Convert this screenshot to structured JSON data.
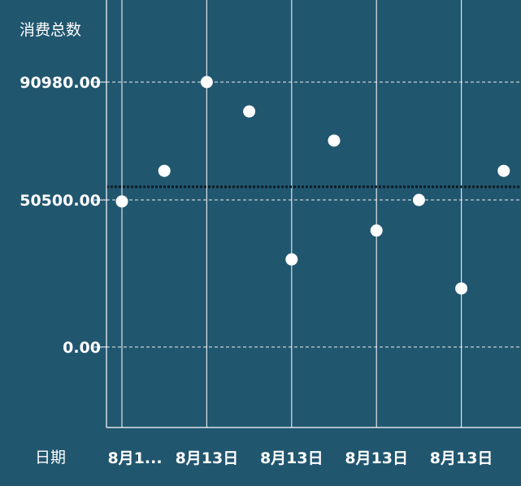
{
  "chart_data": {
    "type": "scatter",
    "ylabel": "消费总数",
    "xlabel": "日期",
    "y_ticks": [
      {
        "value": 90980,
        "label": "90980.00"
      },
      {
        "value": 50500,
        "label": "50500.00"
      },
      {
        "value": 0,
        "label": "0.00"
      }
    ],
    "x_tick_labels": [
      "8月1...",
      "8月13日",
      "8月13日",
      "8月13日",
      "8月13日"
    ],
    "reference_line": 55000,
    "points": [
      {
        "x": 0,
        "y": 50000
      },
      {
        "x": 1,
        "y": 60500
      },
      {
        "x": 2,
        "y": 90980
      },
      {
        "x": 3,
        "y": 80900
      },
      {
        "x": 4,
        "y": 30100
      },
      {
        "x": 5,
        "y": 70900
      },
      {
        "x": 6,
        "y": 40000
      },
      {
        "x": 7,
        "y": 50500
      },
      {
        "x": 8,
        "y": 20100
      },
      {
        "x": 9,
        "y": 60500
      }
    ],
    "ylim": [
      -27000,
      118000
    ],
    "grid": true,
    "colors": {
      "background": "#21566f",
      "point": "#ffffff",
      "grid": "#ffffff",
      "reference_line": "#0b1a24"
    }
  }
}
